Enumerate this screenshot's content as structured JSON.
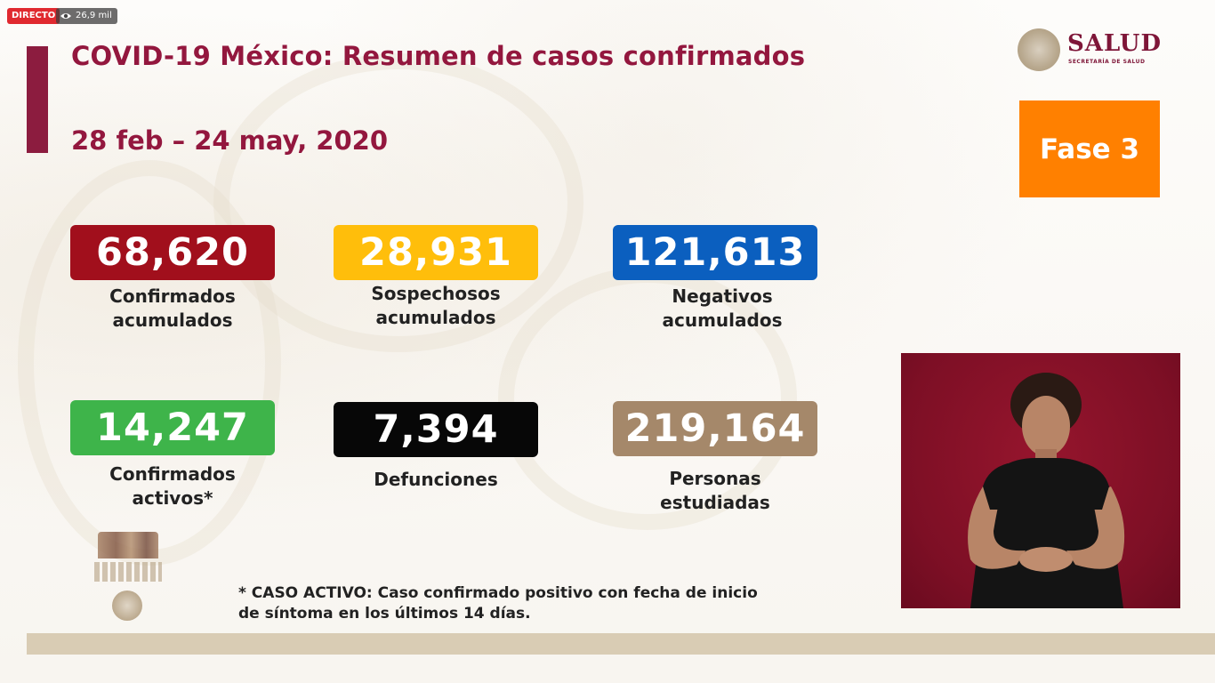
{
  "stream": {
    "live_label": "DIRECTO",
    "viewers": "26,9 mil"
  },
  "header": {
    "title": "COVID-19 México: Resumen de casos confirmados",
    "date_range": "28 feb – 24 may, 2020"
  },
  "logo": {
    "salud_text": "SALUD",
    "salud_subtext": "SECRETARÍA DE SALUD"
  },
  "phase": {
    "label": "Fase 3"
  },
  "stats": [
    {
      "value": "68,620",
      "label_line1": "Confirmados",
      "label_line2": "acumulados",
      "color": "#a10f1c"
    },
    {
      "value": "28,931",
      "label_line1": "Sospechosos",
      "label_line2": "acumulados",
      "color": "#ffbe0b"
    },
    {
      "value": "121,613",
      "label_line1": "Negativos",
      "label_line2": "acumulados",
      "color": "#0b5fbf"
    },
    {
      "value": "14,247",
      "label_line1": "Confirmados",
      "label_line2": "activos*",
      "color": "#3eb44a"
    },
    {
      "value": "7,394",
      "label_line1": "Defunciones",
      "label_line2": "",
      "color": "#070707"
    },
    {
      "value": "219,164",
      "label_line1": "Personas",
      "label_line2": "estudiadas",
      "color": "#a5886a"
    }
  ],
  "footnote": {
    "line1": "* CASO ACTIVO: Caso confirmado positivo con fecha de inicio",
    "line2": "de síntoma en los últimos 14 días."
  },
  "icons": {
    "eye": "eye-icon",
    "seal": "seal-icon",
    "government": "gov-logo"
  },
  "colors": {
    "title": "#93173e",
    "accent_bar": "#8c1c3f",
    "phase": "#ff8000",
    "interpreter_background": "#7d0f25"
  }
}
